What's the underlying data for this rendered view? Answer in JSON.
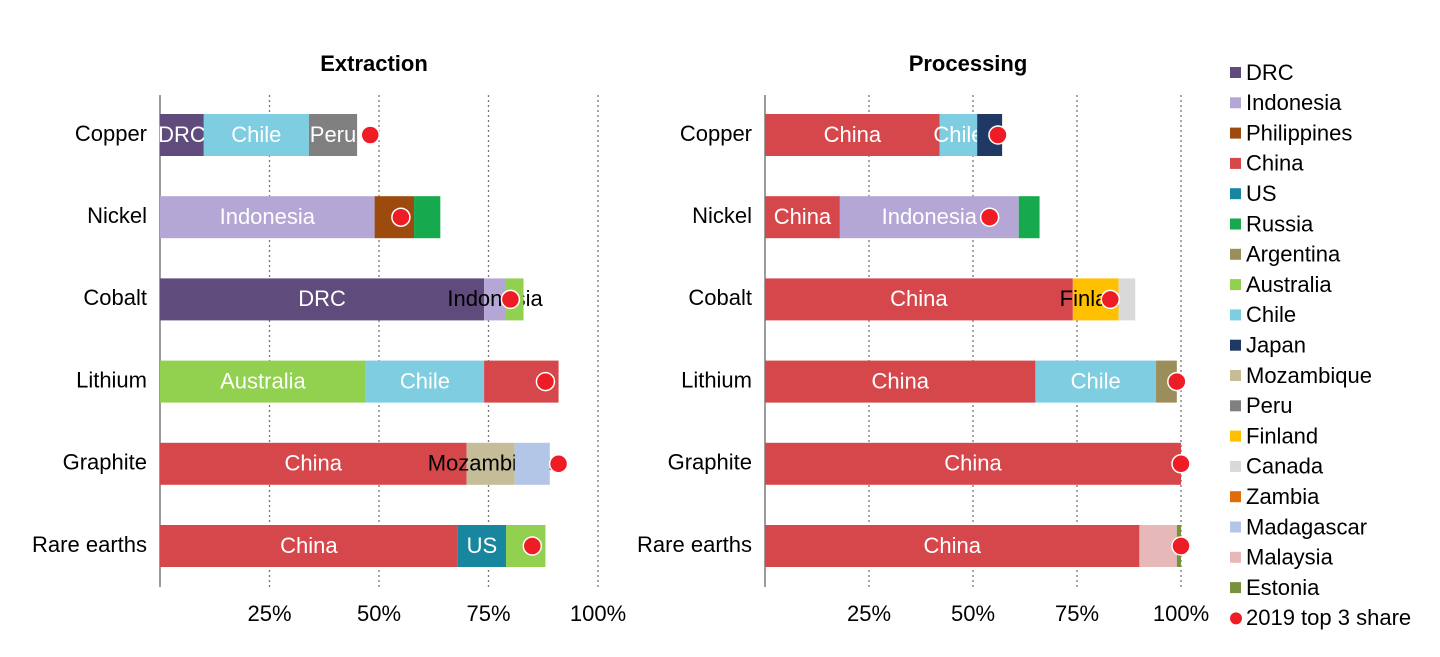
{
  "chart_data": [
    {
      "type": "stacked-bar",
      "title": "Extraction",
      "categories": [
        "Copper",
        "Nickel",
        "Cobalt",
        "Lithium",
        "Graphite",
        "Rare earths"
      ],
      "stacks": [
        [
          {
            "name": "DRC",
            "value": 10,
            "color": "#5f4b7c"
          },
          {
            "name": "Chile",
            "value": 24,
            "color": "#7fcde0"
          },
          {
            "name": "Peru",
            "value": 11,
            "color": "#808080"
          }
        ],
        [
          {
            "name": "Indonesia",
            "value": 49,
            "color": "#b4a7d6"
          },
          {
            "value": 9,
            "color": "#9c4a0e"
          },
          {
            "value": 6,
            "color": "#16a94e"
          }
        ],
        [
          {
            "name": "DRC",
            "value": 74,
            "color": "#5f4b7c"
          },
          {
            "name": "Indonesia",
            "value": 5,
            "color": "#b4a7d6",
            "label_color": "#000000"
          },
          {
            "value": 4,
            "color": "#92d050"
          }
        ],
        [
          {
            "name": "Australia",
            "value": 47,
            "color": "#92d050"
          },
          {
            "name": "Chile",
            "value": 27,
            "color": "#7fcde0"
          },
          {
            "value": 17,
            "color": "#d6474b"
          }
        ],
        [
          {
            "name": "China",
            "value": 70,
            "color": "#d6474b"
          },
          {
            "name": "Mozambique",
            "value": 11,
            "color": "#c4bd97",
            "label_color": "#000000"
          },
          {
            "value": 8,
            "color": "#b4c6e7"
          }
        ],
        [
          {
            "name": "China",
            "value": 68,
            "color": "#d6474b"
          },
          {
            "name": "US",
            "value": 11,
            "color": "#17869e"
          },
          {
            "value": 9,
            "color": "#92d050"
          }
        ]
      ],
      "top3": [
        48,
        55,
        80,
        88,
        91,
        85
      ],
      "xlim": [
        0,
        100
      ],
      "xticks": [
        {
          "value": 25,
          "label": "25%"
        },
        {
          "value": 50,
          "label": "50%"
        },
        {
          "value": 75,
          "label": "75%"
        },
        {
          "value": 100,
          "label": "100%"
        }
      ],
      "grid": true
    },
    {
      "type": "stacked-bar",
      "title": "Processing",
      "categories": [
        "Copper",
        "Nickel",
        "Cobalt",
        "Lithium",
        "Graphite",
        "Rare earths"
      ],
      "stacks": [
        [
          {
            "name": "China",
            "value": 42,
            "color": "#d6474b"
          },
          {
            "name": "Chile",
            "value": 9,
            "color": "#7fcde0"
          },
          {
            "value": 6,
            "color": "#1f3864"
          }
        ],
        [
          {
            "name": "China",
            "value": 18,
            "color": "#d6474b"
          },
          {
            "name": "Indonesia",
            "value": 43,
            "color": "#b4a7d6"
          },
          {
            "value": 5,
            "color": "#16a94e"
          }
        ],
        [
          {
            "name": "China",
            "value": 74,
            "color": "#d6474b"
          },
          {
            "name": "Finland",
            "value": 11,
            "color": "#ffc000",
            "label_color": "#000000"
          },
          {
            "value": 4,
            "color": "#d9d9d9"
          }
        ],
        [
          {
            "name": "China",
            "value": 65,
            "color": "#d6474b"
          },
          {
            "name": "Chile",
            "value": 29,
            "color": "#7fcde0"
          },
          {
            "value": 5,
            "color": "#9c8e5a"
          }
        ],
        [
          {
            "name": "China",
            "value": 100,
            "color": "#d6474b"
          }
        ],
        [
          {
            "name": "China",
            "value": 90,
            "color": "#d6474b"
          },
          {
            "value": 9,
            "color": "#e6b9b8"
          },
          {
            "value": 1,
            "color": "#76923c"
          }
        ]
      ],
      "top3": [
        56,
        54,
        83,
        99,
        100,
        100
      ],
      "xlim": [
        0,
        100
      ],
      "xticks": [
        {
          "value": 25,
          "label": "25%"
        },
        {
          "value": 50,
          "label": "50%"
        },
        {
          "value": 75,
          "label": "75%"
        },
        {
          "value": 100,
          "label": "100%"
        }
      ],
      "grid": true
    }
  ],
  "legend": [
    {
      "name": "DRC",
      "color": "#5f4b7c"
    },
    {
      "name": "Indonesia",
      "color": "#b4a7d6"
    },
    {
      "name": "Philippines",
      "color": "#9c4a0e"
    },
    {
      "name": "China",
      "color": "#d6474b"
    },
    {
      "name": "US",
      "color": "#17869e"
    },
    {
      "name": "Russia",
      "color": "#16a94e"
    },
    {
      "name": "Argentina",
      "color": "#9c8e5a"
    },
    {
      "name": "Australia",
      "color": "#92d050"
    },
    {
      "name": "Chile",
      "color": "#7fcde0"
    },
    {
      "name": "Japan",
      "color": "#1f3864"
    },
    {
      "name": "Mozambique",
      "color": "#c4bd97"
    },
    {
      "name": "Peru",
      "color": "#808080"
    },
    {
      "name": "Finland",
      "color": "#ffc000"
    },
    {
      "name": "Canada",
      "color": "#d9d9d9"
    },
    {
      "name": "Zambia",
      "color": "#e36c0a"
    },
    {
      "name": "Madagascar",
      "color": "#b4c6e7"
    },
    {
      "name": "Malaysia",
      "color": "#e6b9b8"
    },
    {
      "name": "Estonia",
      "color": "#76923c"
    }
  ],
  "marker": {
    "name": "2019 top 3 share",
    "color": "#ee1c25"
  }
}
